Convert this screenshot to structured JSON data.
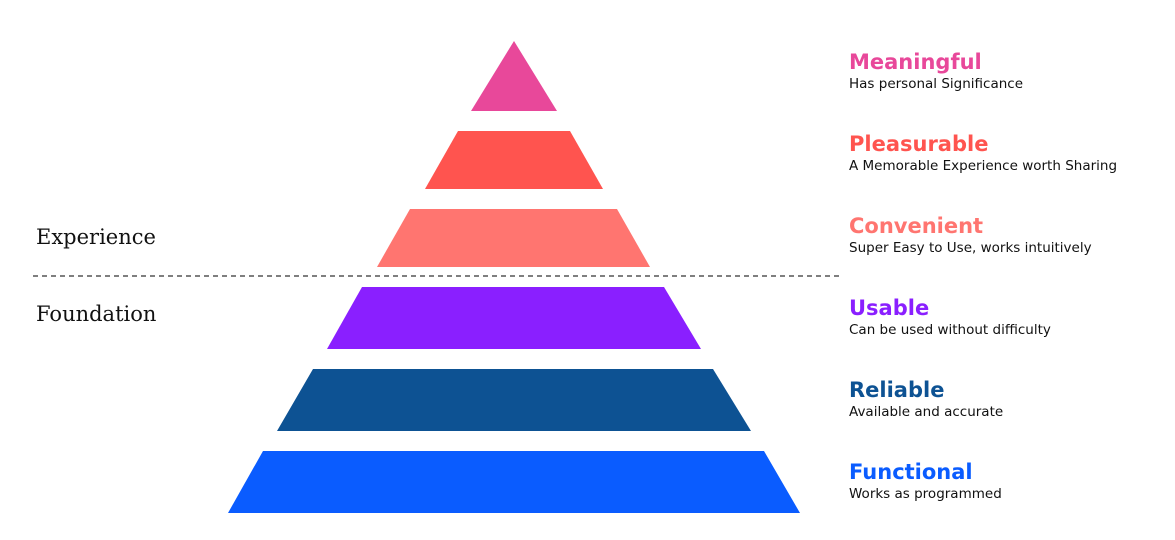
{
  "sections": {
    "experience": "Experience",
    "foundation": "Foundation"
  },
  "levels": [
    {
      "title": "Meaningful",
      "description": "Has personal Significance",
      "color": "#e8489a"
    },
    {
      "title": "Pleasurable",
      "description": "A Memorable Experience worth Sharing",
      "color": "#ff544f"
    },
    {
      "title": "Convenient",
      "description": "Super Easy to Use, works intuitively",
      "color": "#ff7570"
    },
    {
      "title": "Usable",
      "description": "Can be used without difficulty",
      "color": "#8a1fff"
    },
    {
      "title": "Reliable",
      "description": "Available and accurate",
      "color": "#0d5293"
    },
    {
      "title": "Functional",
      "description": "Works as programmed",
      "color": "#0a5cff"
    }
  ]
}
